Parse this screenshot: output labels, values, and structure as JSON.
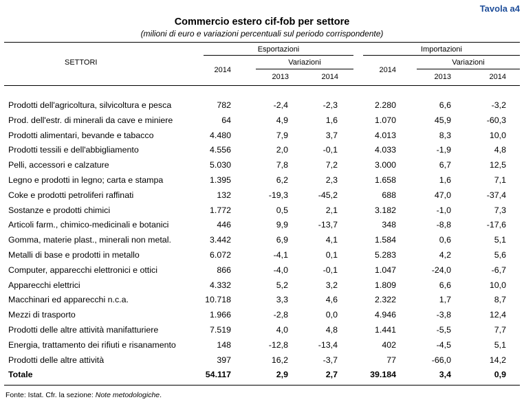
{
  "tavola": "Tavola a4",
  "title": "Commercio estero cif-fob per settore",
  "subtitle": "(milioni di euro e variazioni percentuali sul periodo corrispondente)",
  "headers": {
    "settori": "SETTORI",
    "esportazioni": "Esportazioni",
    "importazioni": "Importazioni",
    "variazioni": "Variazioni",
    "year_2014": "2014",
    "year_2013": "2013"
  },
  "rows": [
    {
      "label": "Prodotti dell'agricoltura, silvicoltura e pesca",
      "exp": "782",
      "exp13": "-2,4",
      "exp14": "-2,3",
      "imp": "2.280",
      "imp13": "6,6",
      "imp14": "-3,2"
    },
    {
      "label": "Prod. dell'estr. di minerali da cave e miniere",
      "exp": "64",
      "exp13": "4,9",
      "exp14": "1,6",
      "imp": "1.070",
      "imp13": "45,9",
      "imp14": "-60,3"
    },
    {
      "label": "Prodotti alimentari, bevande e tabacco",
      "exp": "4.480",
      "exp13": "7,9",
      "exp14": "3,7",
      "imp": "4.013",
      "imp13": "8,3",
      "imp14": "10,0"
    },
    {
      "label": "Prodotti tessili e dell'abbigliamento",
      "exp": "4.556",
      "exp13": "2,0",
      "exp14": "-0,1",
      "imp": "4.033",
      "imp13": "-1,9",
      "imp14": "4,8"
    },
    {
      "label": "Pelli, accessori e calzature",
      "exp": "5.030",
      "exp13": "7,8",
      "exp14": "7,2",
      "imp": "3.000",
      "imp13": "6,7",
      "imp14": "12,5"
    },
    {
      "label": "Legno e prodotti in legno; carta e stampa",
      "exp": "1.395",
      "exp13": "6,2",
      "exp14": "2,3",
      "imp": "1.658",
      "imp13": "1,6",
      "imp14": "7,1"
    },
    {
      "label": "Coke e prodotti petroliferi raffinati",
      "exp": "132",
      "exp13": "-19,3",
      "exp14": "-45,2",
      "imp": "688",
      "imp13": "47,0",
      "imp14": "-37,4"
    },
    {
      "label": "Sostanze e prodotti chimici",
      "exp": "1.772",
      "exp13": "0,5",
      "exp14": "2,1",
      "imp": "3.182",
      "imp13": "-1,0",
      "imp14": "7,3"
    },
    {
      "label": "Articoli farm., chimico-medicinali e botanici",
      "exp": "446",
      "exp13": "9,9",
      "exp14": "-13,7",
      "imp": "348",
      "imp13": "-8,8",
      "imp14": "-17,6"
    },
    {
      "label": "Gomma, materie plast., minerali non metal.",
      "exp": "3.442",
      "exp13": "6,9",
      "exp14": "4,1",
      "imp": "1.584",
      "imp13": "0,6",
      "imp14": "5,1"
    },
    {
      "label": "Metalli di base e prodotti in metallo",
      "exp": "6.072",
      "exp13": "-4,1",
      "exp14": "0,1",
      "imp": "5.283",
      "imp13": "4,2",
      "imp14": "5,6"
    },
    {
      "label": "Computer, apparecchi elettronici e ottici",
      "exp": "866",
      "exp13": "-4,0",
      "exp14": "-0,1",
      "imp": "1.047",
      "imp13": "-24,0",
      "imp14": "-6,7"
    },
    {
      "label": "Apparecchi elettrici",
      "exp": "4.332",
      "exp13": "5,2",
      "exp14": "3,2",
      "imp": "1.809",
      "imp13": "6,6",
      "imp14": "10,0"
    },
    {
      "label": "Macchinari ed apparecchi n.c.a.",
      "exp": "10.718",
      "exp13": "3,3",
      "exp14": "4,6",
      "imp": "2.322",
      "imp13": "1,7",
      "imp14": "8,7"
    },
    {
      "label": "Mezzi di trasporto",
      "exp": "1.966",
      "exp13": "-2,8",
      "exp14": "0,0",
      "imp": "4.946",
      "imp13": "-3,8",
      "imp14": "12,4"
    },
    {
      "label": "Prodotti delle altre attività manifatturiere",
      "exp": "7.519",
      "exp13": "4,0",
      "exp14": "4,8",
      "imp": "1.441",
      "imp13": "-5,5",
      "imp14": "7,7"
    },
    {
      "label": "Energia, trattamento dei rifiuti e risanamento",
      "exp": "148",
      "exp13": "-12,8",
      "exp14": "-13,4",
      "imp": "402",
      "imp13": "-4,5",
      "imp14": "5,1"
    },
    {
      "label": "Prodotti delle altre attività",
      "exp": "397",
      "exp13": "16,2",
      "exp14": "-3,7",
      "imp": "77",
      "imp13": "-66,0",
      "imp14": "14,2"
    }
  ],
  "total": {
    "label": "Totale",
    "exp": "54.117",
    "exp13": "2,9",
    "exp14": "2,7",
    "imp": "39.184",
    "imp13": "3,4",
    "imp14": "0,9"
  },
  "source": {
    "prefix": "Fonte: Istat. Cfr. la sezione: ",
    "note": "Note metodologiche",
    "suffix": "."
  }
}
